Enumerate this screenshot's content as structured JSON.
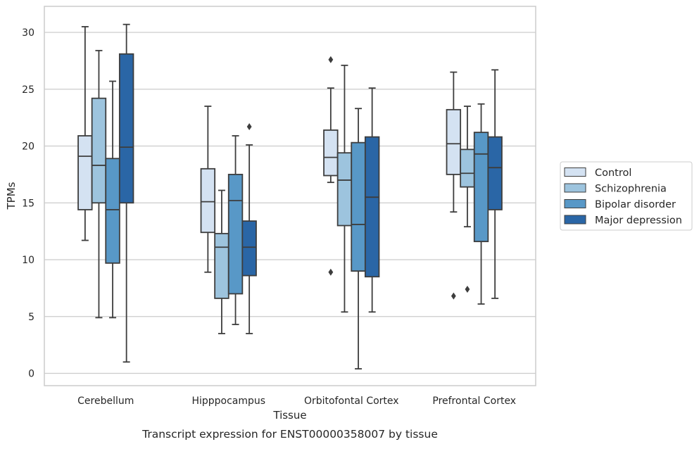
{
  "chart_data": {
    "type": "box",
    "xlabel": "Tissue",
    "ylabel": "TPMs",
    "caption": "Transcript expression for ENST00000358007 by tissue",
    "ylim": [
      -1,
      32
    ],
    "yticks": [
      0,
      5,
      10,
      15,
      20,
      25,
      30
    ],
    "grid": "horizontal",
    "legend_position": "right",
    "categories": [
      "Cerebellum",
      "Hipppocampus",
      "Orbitofontal Cortex",
      "Prefrontal Cortex"
    ],
    "series": [
      {
        "name": "Control",
        "color": "#d4e2f2",
        "boxes": [
          {
            "whislo": 11.7,
            "q1": 14.4,
            "med": 19.1,
            "q3": 20.9,
            "whishi": 30.5,
            "fliers": []
          },
          {
            "whislo": 8.9,
            "q1": 12.4,
            "med": 15.1,
            "q3": 18.0,
            "whishi": 23.5,
            "fliers": []
          },
          {
            "whislo": 16.8,
            "q1": 17.4,
            "med": 19.0,
            "q3": 21.4,
            "whishi": 25.1,
            "fliers": [
              27.6,
              8.9
            ]
          },
          {
            "whislo": 14.2,
            "q1": 17.5,
            "med": 20.2,
            "q3": 23.2,
            "whishi": 26.5,
            "fliers": [
              6.8
            ]
          }
        ]
      },
      {
        "name": "Schizophrenia",
        "color": "#9dc4de",
        "boxes": [
          {
            "whislo": 4.9,
            "q1": 15.0,
            "med": 18.3,
            "q3": 24.2,
            "whishi": 28.4,
            "fliers": []
          },
          {
            "whislo": 3.5,
            "q1": 6.6,
            "med": 11.1,
            "q3": 12.3,
            "whishi": 16.1,
            "fliers": []
          },
          {
            "whislo": 5.4,
            "q1": 13.0,
            "med": 17.0,
            "q3": 19.4,
            "whishi": 27.1,
            "fliers": []
          },
          {
            "whislo": 12.9,
            "q1": 16.4,
            "med": 17.6,
            "q3": 19.7,
            "whishi": 23.5,
            "fliers": [
              7.4
            ]
          }
        ]
      },
      {
        "name": "Bipolar disorder",
        "color": "#5898c7",
        "boxes": [
          {
            "whislo": 4.9,
            "q1": 9.7,
            "med": 14.4,
            "q3": 18.9,
            "whishi": 25.7,
            "fliers": []
          },
          {
            "whislo": 4.3,
            "q1": 7.0,
            "med": 15.2,
            "q3": 17.5,
            "whishi": 20.9,
            "fliers": []
          },
          {
            "whislo": 0.4,
            "q1": 9.0,
            "med": 13.1,
            "q3": 20.3,
            "whishi": 23.3,
            "fliers": []
          },
          {
            "whislo": 6.1,
            "q1": 11.6,
            "med": 19.3,
            "q3": 21.2,
            "whishi": 23.7,
            "fliers": []
          }
        ]
      },
      {
        "name": "Major depression",
        "color": "#2a66a6",
        "boxes": [
          {
            "whislo": 1.0,
            "q1": 15.0,
            "med": 19.9,
            "q3": 28.1,
            "whishi": 30.7,
            "fliers": []
          },
          {
            "whislo": 3.5,
            "q1": 8.6,
            "med": 11.1,
            "q3": 13.4,
            "whishi": 20.1,
            "fliers": [
              21.7
            ]
          },
          {
            "whislo": 5.4,
            "q1": 8.5,
            "med": 15.5,
            "q3": 20.8,
            "whishi": 25.1,
            "fliers": []
          },
          {
            "whislo": 6.6,
            "q1": 14.4,
            "med": 18.1,
            "q3": 20.8,
            "whishi": 26.7,
            "fliers": []
          }
        ]
      }
    ]
  }
}
